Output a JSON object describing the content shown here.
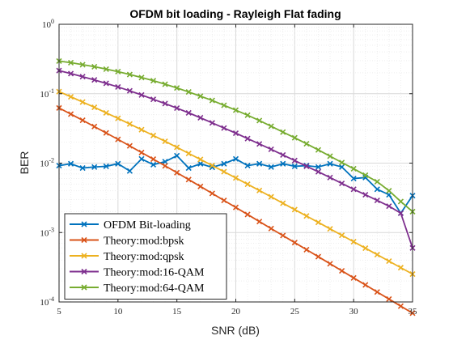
{
  "chart_data": {
    "type": "line",
    "title": "OFDM bit loading -  Rayleigh Flat fading",
    "xlabel": "SNR (dB)",
    "ylabel": "BER",
    "x_ticks": [
      5,
      10,
      15,
      20,
      25,
      30,
      35
    ],
    "y_ticks": [
      {
        "base": "10",
        "exp": "-4"
      },
      {
        "base": "10",
        "exp": "-3"
      },
      {
        "base": "10",
        "exp": "-2"
      },
      {
        "base": "10",
        "exp": "-1"
      },
      {
        "base": "10",
        "exp": "0"
      }
    ],
    "xlim": [
      5,
      35
    ],
    "ylim": [
      0.0001,
      1
    ],
    "yscale": "log",
    "grid": true,
    "legend_position": "bottom-left",
    "x": [
      5,
      6,
      7,
      8,
      9,
      10,
      11,
      12,
      13,
      14,
      15,
      16,
      17,
      18,
      19,
      20,
      21,
      22,
      23,
      24,
      25,
      26,
      27,
      28,
      29,
      30,
      31,
      32,
      33,
      34,
      35
    ],
    "series": [
      {
        "name": "OFDM Bit-loading",
        "color": "#0072BD",
        "values": [
          0.0092,
          0.0098,
          0.0085,
          0.0088,
          0.009,
          0.0098,
          0.0077,
          0.0115,
          0.0095,
          0.0105,
          0.0128,
          0.0085,
          0.0098,
          0.0087,
          0.0098,
          0.0115,
          0.0092,
          0.0098,
          0.0088,
          0.0098,
          0.009,
          0.0092,
          0.0088,
          0.0098,
          0.0088,
          0.006,
          0.0062,
          0.0042,
          0.0035,
          0.0019,
          0.0034
        ]
      },
      {
        "name": "Theory:mod:bpsk",
        "color": "#D95319",
        "values": [
          0.0623,
          0.0508,
          0.0414,
          0.0336,
          0.0272,
          0.022,
          0.0177,
          0.0142,
          0.0114,
          0.00913,
          0.00729,
          0.0058,
          0.00461,
          0.00366,
          0.0029,
          0.0023,
          0.00182,
          0.00144,
          0.00114,
          0.000905,
          0.000716,
          0.000567,
          0.000449,
          0.000355,
          0.000281,
          0.000222,
          0.000176,
          0.000139,
          0.00011,
          8.7e-05,
          6.9e-05
        ]
      },
      {
        "name": "Theory:mod:qpsk",
        "color": "#EDB120",
        "values": [
          0.1072,
          0.0904,
          0.0759,
          0.0636,
          0.053,
          0.0441,
          0.0366,
          0.0303,
          0.025,
          0.0206,
          0.0169,
          0.0138,
          0.0113,
          0.00923,
          0.00752,
          0.00612,
          0.00497,
          0.00403,
          0.00327,
          0.00264,
          0.00214,
          0.00173,
          0.0014,
          0.00113,
          0.000913,
          0.000737,
          0.000595,
          0.00048,
          0.000387,
          0.000312,
          0.000252
        ]
      },
      {
        "name": "Theory:mod:16-QAM",
        "color": "#7E2F8E",
        "values": [
          0.215,
          0.195,
          0.176,
          0.158,
          0.141,
          0.125,
          0.11,
          0.096,
          0.083,
          0.072,
          0.062,
          0.053,
          0.045,
          0.038,
          0.032,
          0.027,
          0.0226,
          0.0189,
          0.0158,
          0.0131,
          0.0109,
          0.009,
          0.0075,
          0.0062,
          0.0051,
          0.0042,
          0.0035,
          0.0029,
          0.0024,
          0.0019,
          0.0006
        ]
      },
      {
        "name": "Theory:mod:64-QAM",
        "color": "#77AC30",
        "values": [
          0.295,
          0.28,
          0.262,
          0.245,
          0.226,
          0.208,
          0.189,
          0.171,
          0.154,
          0.137,
          0.121,
          0.106,
          0.092,
          0.08,
          0.068,
          0.058,
          0.049,
          0.041,
          0.034,
          0.028,
          0.0232,
          0.019,
          0.0155,
          0.0126,
          0.0102,
          0.0083,
          0.0067,
          0.0054,
          0.004,
          0.0028,
          0.002
        ]
      }
    ]
  }
}
